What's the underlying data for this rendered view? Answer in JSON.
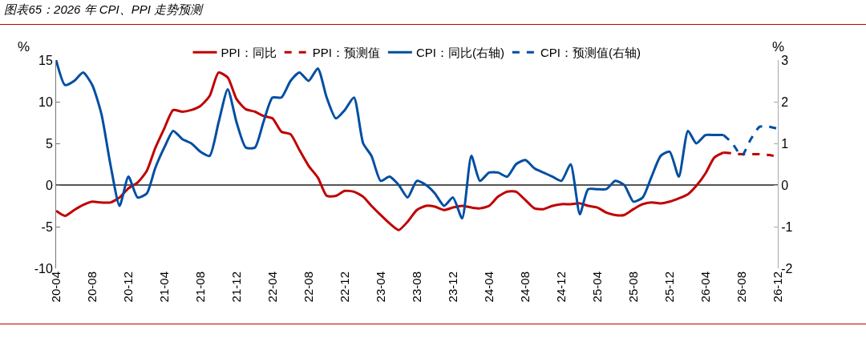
{
  "chart_data": {
    "type": "line",
    "title": "图表65：2026 年 CPI、PPI 走势预测",
    "ylabel": "%",
    "y2label": "%",
    "x": [
      "2020-04",
      "2020-05",
      "2020-06",
      "2020-07",
      "2020-08",
      "2020-09",
      "2020-10",
      "2020-11",
      "2020-12",
      "2021-01",
      "2021-02",
      "2021-03",
      "2021-04",
      "2021-05",
      "2021-06",
      "2021-07",
      "2021-08",
      "2021-09",
      "2021-10",
      "2021-11",
      "2021-12",
      "2022-01",
      "2022-02",
      "2022-03",
      "2022-04",
      "2022-05",
      "2022-06",
      "2022-07",
      "2022-08",
      "2022-09",
      "2022-10",
      "2022-11",
      "2022-12",
      "2023-01",
      "2023-02",
      "2023-03",
      "2023-04",
      "2023-05",
      "2023-06",
      "2023-07",
      "2023-08",
      "2023-09",
      "2023-10",
      "2023-11",
      "2023-12",
      "2024-01",
      "2024-02",
      "2024-03",
      "2024-04",
      "2024-05",
      "2024-06",
      "2024-07",
      "2024-08",
      "2024-09",
      "2024-10",
      "2024-11",
      "2024-12",
      "2025-01",
      "2025-02",
      "2025-03",
      "2025-04",
      "2025-05",
      "2025-06",
      "2025-07",
      "2025-08",
      "2025-09",
      "2025-10",
      "2025-11",
      "2025-12",
      "2026-01",
      "2026-02",
      "2026-03",
      "2026-04",
      "2026-05",
      "2026-06",
      "2026-07",
      "2026-08",
      "2026-09",
      "2026-10",
      "2026-11",
      "2026-12"
    ],
    "xlim": [
      "2020-04",
      "2026-12"
    ],
    "xticks": [
      {
        "value": "2020-04",
        "label": "20-04"
      },
      {
        "value": "2020-08",
        "label": "20-08"
      },
      {
        "value": "2020-12",
        "label": "20-12"
      },
      {
        "value": "2021-04",
        "label": "21-04"
      },
      {
        "value": "2021-08",
        "label": "21-08"
      },
      {
        "value": "2021-12",
        "label": "21-12"
      },
      {
        "value": "2022-04",
        "label": "22-04"
      },
      {
        "value": "2022-08",
        "label": "22-08"
      },
      {
        "value": "2022-12",
        "label": "22-12"
      },
      {
        "value": "2023-04",
        "label": "23-04"
      },
      {
        "value": "2023-08",
        "label": "23-08"
      },
      {
        "value": "2023-12",
        "label": "23-12"
      },
      {
        "value": "2024-04",
        "label": "24-04"
      },
      {
        "value": "2024-08",
        "label": "24-08"
      },
      {
        "value": "2024-12",
        "label": "24-12"
      },
      {
        "value": "2025-04",
        "label": "25-04"
      },
      {
        "value": "2025-08",
        "label": "25-08"
      },
      {
        "value": "2025-12",
        "label": "25-12"
      },
      {
        "value": "2026-04",
        "label": "26-04"
      },
      {
        "value": "2026-08",
        "label": "26-08"
      },
      {
        "value": "2026-12",
        "label": "26-12"
      }
    ],
    "ylim": [
      -10,
      15
    ],
    "yticks": [
      -10,
      -5,
      0,
      5,
      10,
      15
    ],
    "y2lim": [
      -2,
      3
    ],
    "y2ticks": [
      -2,
      -1,
      0,
      1,
      2,
      3
    ],
    "legend": "top",
    "series": [
      {
        "name": "PPI：同比",
        "color": "#c00000",
        "line_style": "solid",
        "values": [
          -3.1,
          -3.7,
          -3.0,
          -2.4,
          -2.0,
          -2.1,
          -2.1,
          -1.5,
          -0.4,
          0.3,
          1.7,
          4.4,
          6.8,
          9.0,
          8.8,
          9.0,
          9.5,
          10.7,
          13.5,
          12.9,
          10.3,
          9.1,
          8.8,
          8.3,
          8.0,
          6.4,
          6.1,
          4.2,
          2.3,
          0.9,
          -1.3,
          -1.3,
          -0.7,
          -0.8,
          -1.4,
          -2.5,
          -3.6,
          -4.6,
          -5.4,
          -4.4,
          -3.0,
          -2.5,
          -2.6,
          -3.0,
          -2.7,
          -2.5,
          -2.7,
          -2.8,
          -2.5,
          -1.4,
          -0.8,
          -0.8,
          -1.8,
          -2.8,
          -2.9,
          -2.5,
          -2.3,
          -2.3,
          -2.2,
          -2.5,
          -2.7,
          -3.3,
          -3.6,
          -3.6,
          -2.9,
          -2.3,
          -2.1,
          -2.2,
          -2.0,
          -1.6,
          -1.1,
          -0.1,
          1.4,
          3.3,
          3.9,
          null,
          null,
          null,
          null,
          null,
          null
        ]
      },
      {
        "name": "PPI：预测值",
        "color": "#c00000",
        "line_style": "dashed",
        "values": [
          null,
          null,
          null,
          null,
          null,
          null,
          null,
          null,
          null,
          null,
          null,
          null,
          null,
          null,
          null,
          null,
          null,
          null,
          null,
          null,
          null,
          null,
          null,
          null,
          null,
          null,
          null,
          null,
          null,
          null,
          null,
          null,
          null,
          null,
          null,
          null,
          null,
          null,
          null,
          null,
          null,
          null,
          null,
          null,
          null,
          null,
          null,
          null,
          null,
          null,
          null,
          null,
          null,
          null,
          null,
          null,
          null,
          null,
          null,
          null,
          null,
          null,
          null,
          null,
          null,
          null,
          null,
          null,
          null,
          null,
          null,
          null,
          null,
          null,
          3.9,
          3.8,
          3.7,
          3.7,
          3.7,
          3.6,
          3.4
        ]
      },
      {
        "name": "CPI：同比(右轴)",
        "color": "#004ea2",
        "line_style": "solid",
        "axis": "y2",
        "values": [
          3.0,
          2.4,
          2.5,
          2.7,
          2.4,
          1.7,
          0.5,
          -0.5,
          0.2,
          -0.3,
          -0.2,
          0.4,
          0.9,
          1.3,
          1.1,
          1.0,
          0.8,
          0.7,
          1.5,
          2.3,
          1.5,
          0.9,
          0.9,
          1.5,
          2.1,
          2.1,
          2.5,
          2.7,
          2.5,
          2.8,
          2.1,
          1.6,
          1.8,
          2.1,
          1.0,
          0.7,
          0.1,
          0.2,
          0.0,
          -0.3,
          0.1,
          0.0,
          -0.2,
          -0.5,
          -0.3,
          -0.8,
          0.7,
          0.1,
          0.3,
          0.3,
          0.2,
          0.5,
          0.6,
          0.4,
          0.3,
          0.2,
          0.1,
          0.5,
          -0.7,
          -0.1,
          -0.1,
          -0.1,
          0.1,
          0.0,
          -0.4,
          -0.3,
          0.2,
          0.7,
          0.8,
          0.2,
          1.3,
          1.0,
          1.2,
          1.2,
          1.2,
          null,
          null,
          null,
          null,
          null,
          null
        ]
      },
      {
        "name": "CPI：预测值(右轴)",
        "color": "#004ea2",
        "line_style": "dashed",
        "axis": "y2",
        "values": [
          null,
          null,
          null,
          null,
          null,
          null,
          null,
          null,
          null,
          null,
          null,
          null,
          null,
          null,
          null,
          null,
          null,
          null,
          null,
          null,
          null,
          null,
          null,
          null,
          null,
          null,
          null,
          null,
          null,
          null,
          null,
          null,
          null,
          null,
          null,
          null,
          null,
          null,
          null,
          null,
          null,
          null,
          null,
          null,
          null,
          null,
          null,
          null,
          null,
          null,
          null,
          null,
          null,
          null,
          null,
          null,
          null,
          null,
          null,
          null,
          null,
          null,
          null,
          null,
          null,
          null,
          null,
          null,
          null,
          null,
          null,
          null,
          null,
          null,
          1.2,
          1.0,
          0.7,
          1.1,
          1.4,
          1.4,
          1.35
        ]
      }
    ]
  }
}
